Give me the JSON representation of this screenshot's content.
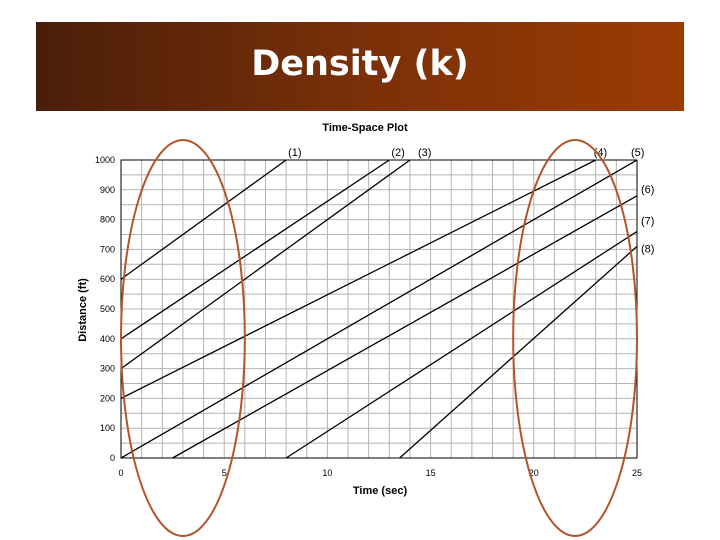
{
  "slide": {
    "title": "Density (k)",
    "header_gradient": [
      "#4a1e0b",
      "#9c3b04"
    ]
  },
  "chart_data": {
    "type": "line",
    "title": "Time-Space Plot",
    "xlabel": "Time (sec)",
    "ylabel": "Distance (ft)",
    "xlim": [
      0,
      25
    ],
    "ylim": [
      0,
      1000
    ],
    "x_ticks": [
      0,
      5,
      10,
      15,
      20,
      25
    ],
    "y_ticks": [
      0,
      100,
      200,
      300,
      400,
      500,
      600,
      700,
      800,
      900,
      1000
    ],
    "grid": true,
    "series": [
      {
        "name": "(1)",
        "points": [
          [
            0,
            600
          ],
          [
            8,
            1000
          ]
        ]
      },
      {
        "name": "(2)",
        "points": [
          [
            0,
            400
          ],
          [
            13,
            1000
          ]
        ]
      },
      {
        "name": "(3)",
        "points": [
          [
            0,
            300
          ],
          [
            14,
            1000
          ]
        ]
      },
      {
        "name": "(4)",
        "points": [
          [
            0,
            200
          ],
          [
            23,
            1000
          ]
        ]
      },
      {
        "name": "(5)",
        "points": [
          [
            0,
            0
          ],
          [
            25,
            1000
          ]
        ]
      },
      {
        "name": "(6)",
        "points": [
          [
            2.5,
            0
          ],
          [
            25,
            880
          ]
        ]
      },
      {
        "name": "(7)",
        "points": [
          [
            8,
            0
          ],
          [
            25,
            760
          ]
        ]
      },
      {
        "name": "(8)",
        "points": [
          [
            13.5,
            0
          ],
          [
            25,
            710
          ]
        ]
      }
    ],
    "highlights": [
      {
        "shape": "ellipse",
        "x_range": [
          0,
          6
        ],
        "color": "#b5532a"
      },
      {
        "shape": "ellipse",
        "x_range": [
          19,
          25
        ],
        "color": "#b5532a"
      }
    ]
  }
}
